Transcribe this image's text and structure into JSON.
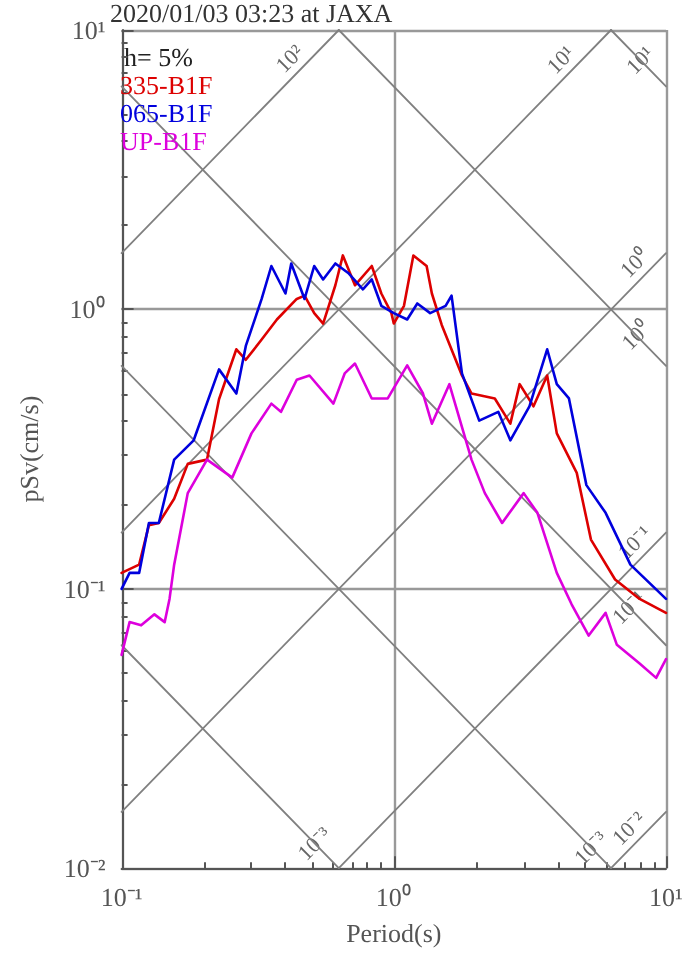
{
  "chart_data": {
    "type": "line",
    "title": "2020/01/03 03:23 at JAXA",
    "xlabel": "Period(s)",
    "ylabel": "pSv(cm/s)",
    "log": "xy",
    "xlim": [
      0.1,
      10
    ],
    "ylim": [
      0.01,
      10
    ],
    "xticks": [
      {
        "value": 0.1,
        "label": "10⁻¹"
      },
      {
        "value": 1,
        "label": "10⁰"
      },
      {
        "value": 10,
        "label": "10¹"
      }
    ],
    "yticks": [
      {
        "value": 0.01,
        "label": "10⁻²"
      },
      {
        "value": 0.1,
        "label": "10⁻¹"
      },
      {
        "value": 1,
        "label": "10⁰"
      },
      {
        "value": 10,
        "label": "10¹"
      }
    ],
    "grid": true,
    "legend": "top left",
    "line_style": "solid",
    "marker": "none",
    "series": [
      {
        "color": "#808080",
        "x": [
          0.1,
          0.628
        ],
        "values": [
          1.59,
          10
        ]
      },
      {
        "color": "#808080",
        "x": [
          0.1,
          6.28
        ],
        "values": [
          0.159,
          10
        ]
      },
      {
        "color": "#808080",
        "x": [
          0.1,
          10
        ],
        "values": [
          0.0159,
          1.59
        ]
      },
      {
        "color": "#808080",
        "x": [
          0.628,
          10
        ],
        "values": [
          0.01,
          0.159
        ]
      },
      {
        "color": "#808080",
        "x": [
          6.28,
          10
        ],
        "values": [
          0.01,
          0.0159
        ]
      },
      {
        "color": "#808080",
        "x": [
          6.28,
          10
        ],
        "values": [
          10,
          6.28
        ]
      },
      {
        "color": "#808080",
        "x": [
          0.628,
          10
        ],
        "values": [
          10,
          0.628
        ]
      },
      {
        "color": "#808080",
        "x": [
          0.1,
          10
        ],
        "values": [
          6.28,
          0.0628
        ]
      },
      {
        "color": "#808080",
        "x": [
          0.1,
          6.28
        ],
        "values": [
          0.628,
          0.01
        ]
      },
      {
        "color": "#808080",
        "x": [
          0.1,
          0.628
        ],
        "values": [
          0.0628,
          0.01
        ]
      },
      {
        "name": "335-B1F",
        "color": "#dd0000",
        "x": [
          0.1,
          0.116,
          0.126,
          0.137,
          0.156,
          0.175,
          0.206,
          0.228,
          0.264,
          0.286,
          0.327,
          0.372,
          0.44,
          0.47,
          0.51,
          0.55,
          0.61,
          0.65,
          0.72,
          0.83,
          0.9,
          0.98,
          1.0,
          1.09,
          1.18,
          1.32,
          1.38,
          1.5,
          1.78,
          1.93,
          2.35,
          2.68,
          2.9,
          3.26,
          3.66,
          3.97,
          4.7,
          5.3,
          6.5,
          8.0,
          10
        ],
        "values": [
          0.114,
          0.122,
          0.169,
          0.172,
          0.21,
          0.28,
          0.29,
          0.477,
          0.72,
          0.66,
          0.78,
          0.92,
          1.09,
          1.12,
          0.97,
          0.89,
          1.22,
          1.56,
          1.22,
          1.43,
          1.14,
          0.97,
          0.89,
          1.03,
          1.56,
          1.43,
          1.14,
          0.88,
          0.58,
          0.5,
          0.48,
          0.39,
          0.54,
          0.45,
          0.58,
          0.36,
          0.26,
          0.15,
          0.108,
          0.092,
          0.082
        ]
      },
      {
        "name": "065-B1F",
        "color": "#0000dd",
        "x": [
          0.1,
          0.107,
          0.116,
          0.126,
          0.137,
          0.156,
          0.184,
          0.228,
          0.264,
          0.286,
          0.327,
          0.355,
          0.4,
          0.42,
          0.47,
          0.51,
          0.55,
          0.61,
          0.68,
          0.77,
          0.83,
          0.9,
          1.0,
          1.12,
          1.22,
          1.36,
          1.55,
          1.63,
          1.78,
          2.06,
          2.42,
          2.68,
          3.15,
          3.66,
          3.97,
          4.4,
          5.1,
          6.0,
          7.4,
          10
        ],
        "values": [
          0.1,
          0.114,
          0.114,
          0.172,
          0.172,
          0.29,
          0.34,
          0.61,
          0.5,
          0.74,
          1.09,
          1.43,
          1.14,
          1.46,
          1.09,
          1.43,
          1.28,
          1.46,
          1.35,
          1.18,
          1.28,
          1.03,
          0.97,
          0.92,
          1.05,
          0.97,
          1.03,
          1.12,
          0.59,
          0.4,
          0.43,
          0.34,
          0.45,
          0.72,
          0.54,
          0.48,
          0.235,
          0.187,
          0.122,
          0.092
        ]
      },
      {
        "name": "UP-B1F",
        "color": "#dd00dd",
        "x": [
          0.1,
          0.107,
          0.118,
          0.132,
          0.144,
          0.15,
          0.156,
          0.175,
          0.206,
          0.255,
          0.3,
          0.355,
          0.385,
          0.44,
          0.49,
          0.6,
          0.66,
          0.72,
          0.83,
          0.95,
          1.12,
          1.28,
          1.38,
          1.6,
          1.93,
          2.16,
          2.5,
          3.0,
          3.37,
          3.97,
          4.5,
          5.2,
          6.0,
          6.6,
          8.0,
          9.2,
          10
        ],
        "values": [
          0.058,
          0.076,
          0.074,
          0.081,
          0.076,
          0.092,
          0.122,
          0.22,
          0.29,
          0.25,
          0.36,
          0.46,
          0.43,
          0.56,
          0.58,
          0.46,
          0.59,
          0.64,
          0.48,
          0.48,
          0.63,
          0.5,
          0.39,
          0.54,
          0.29,
          0.22,
          0.172,
          0.22,
          0.187,
          0.114,
          0.088,
          0.068,
          0.082,
          0.063,
          0.054,
          0.048,
          0.056
        ]
      }
    ],
    "annotations": [
      "h= 5%",
      {
        "text": "10²",
        "x": 0.454,
        "y": 7.23
      },
      {
        "text": "10¹",
        "x": 4.5,
        "y": 7.16
      },
      {
        "text": "10¹",
        "x": 8.8,
        "y": 7.14
      },
      {
        "text": "10⁰",
        "x": 8.4,
        "y": 1.34
      },
      {
        "text": "10⁰",
        "x": 8.5,
        "y": 0.739
      },
      {
        "text": "10⁻¹",
        "x": 8.4,
        "y": 0.134
      },
      {
        "text": "10⁻¹",
        "x": 8.0,
        "y": 0.0785
      },
      {
        "text": "10⁻³",
        "x": 0.56,
        "y": 0.0112
      },
      {
        "text": "10⁻³",
        "x": 5.8,
        "y": 0.0108
      },
      {
        "text": "10⁻²",
        "x": 8.0,
        "y": 0.0127
      }
    ]
  }
}
